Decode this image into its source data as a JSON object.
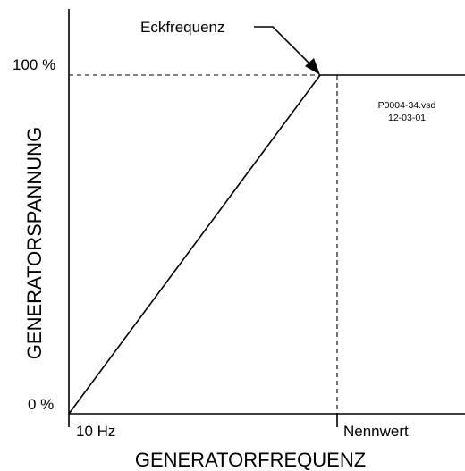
{
  "diagram": {
    "y_axis_label": "GENERATORSPANNUNG",
    "x_axis_label": "GENERATORFREQUENZ",
    "y_top_label": "100 %",
    "y_bottom_label": "0 %",
    "x_start_label": "10 Hz",
    "x_rated_label": "Nennwert",
    "corner_label": "Eckfrequenz",
    "file_name": "P0004-34.vsd",
    "file_date": "12-03-01"
  }
}
